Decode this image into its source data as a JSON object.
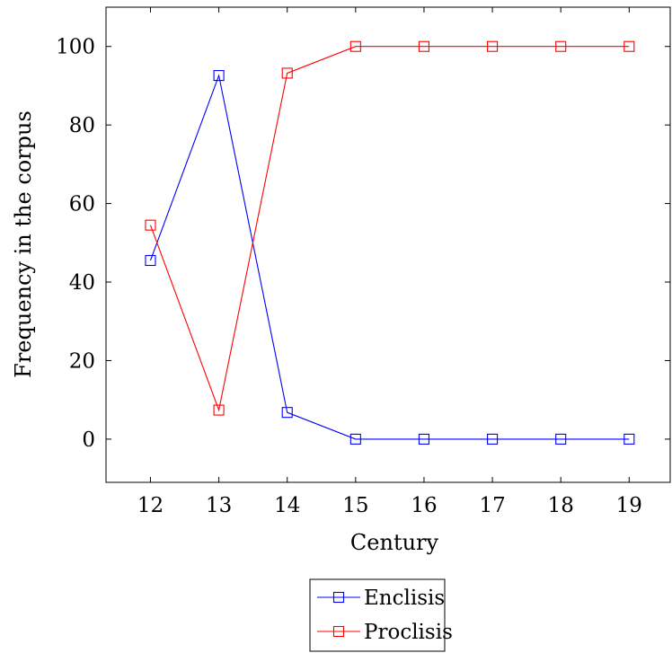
{
  "chart_data": {
    "type": "line",
    "title": "",
    "xlabel": "Century",
    "ylabel": "Frequency in the corpus",
    "x": [
      12,
      13,
      14,
      15,
      16,
      17,
      18,
      19
    ],
    "xlim": [
      11.35,
      19.6
    ],
    "ylim": [
      -11,
      110
    ],
    "yticks": [
      0,
      20,
      40,
      60,
      80,
      100
    ],
    "xticks": [
      12,
      13,
      14,
      15,
      16,
      17,
      18,
      19
    ],
    "grid": false,
    "legend_position": "below",
    "series": [
      {
        "name": "Enclisis",
        "color": "#0000ff",
        "marker": "square",
        "values": [
          45.5,
          92.6,
          6.8,
          0,
          0,
          0,
          0,
          0
        ]
      },
      {
        "name": "Proclisis",
        "color": "#ff0000",
        "marker": "square",
        "values": [
          54.5,
          7.4,
          93.2,
          100,
          100,
          100,
          100,
          100
        ]
      }
    ]
  }
}
